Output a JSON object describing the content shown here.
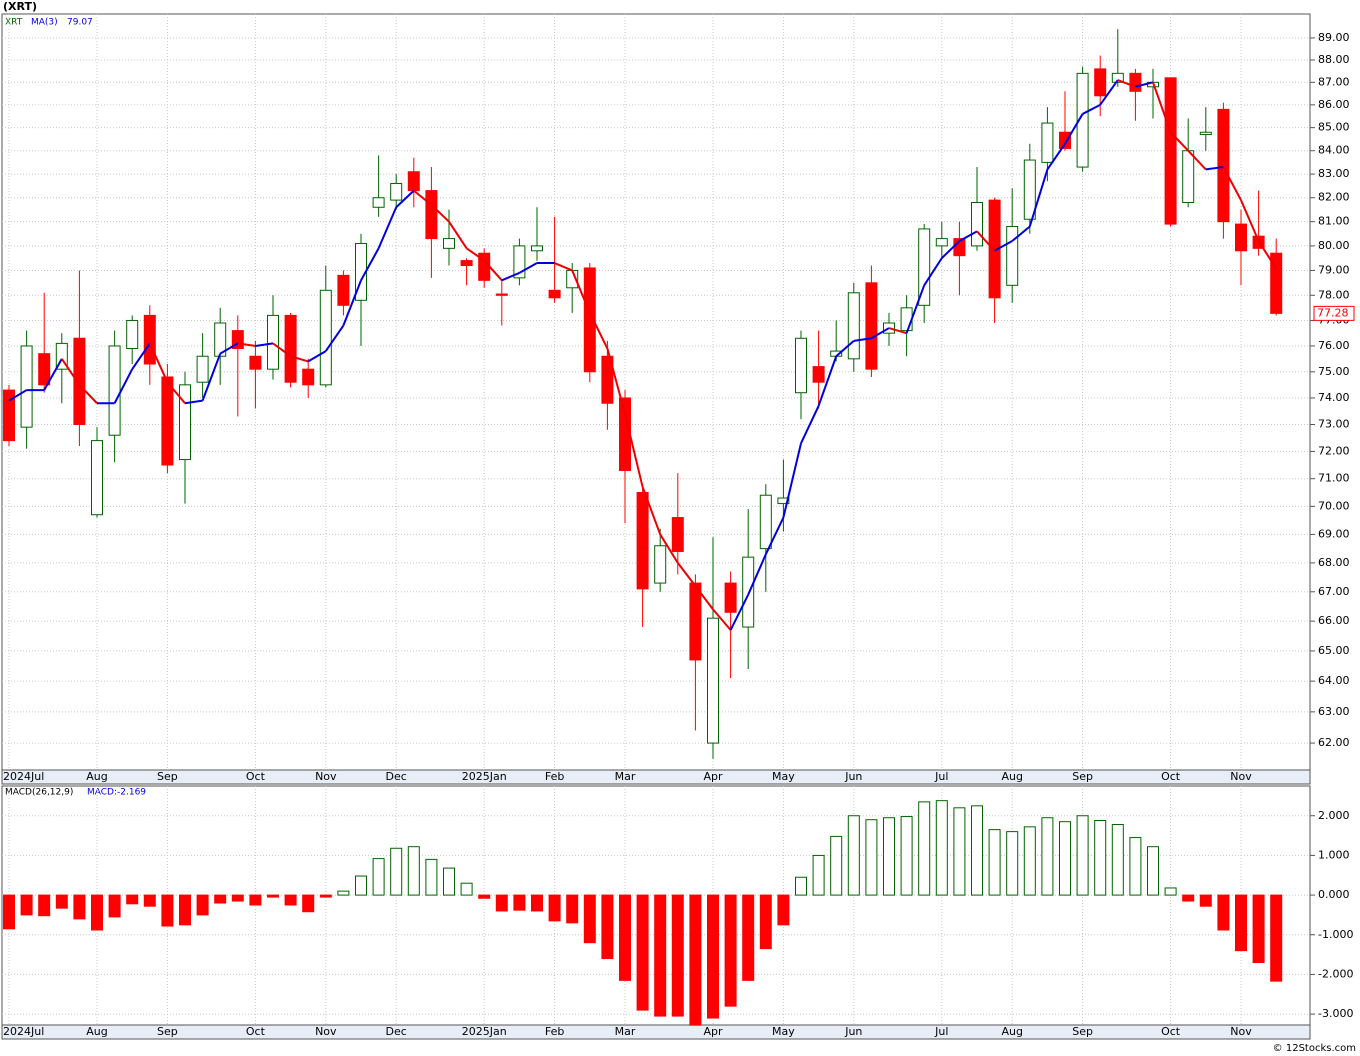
{
  "chart_data": [
    {
      "type": "candlestick",
      "title": "(XRT)",
      "symbol": "XRT",
      "ma_label": "MA(3)",
      "ma_value": 79.07,
      "log_scale": true,
      "grid": true,
      "up_color": "#006400",
      "down_color": "#ff0000",
      "ma_up_color": "#0000dd",
      "ma_down_color": "#ee0000",
      "categories": [
        "2024Jul",
        null,
        null,
        null,
        null,
        "Aug",
        null,
        null,
        null,
        "Sep",
        null,
        null,
        null,
        null,
        "Oct",
        null,
        null,
        null,
        "Nov",
        null,
        null,
        null,
        "Dec",
        null,
        null,
        null,
        null,
        "2025Jan",
        null,
        null,
        null,
        "Feb",
        null,
        null,
        null,
        "Mar",
        null,
        null,
        null,
        null,
        "Apr",
        null,
        null,
        null,
        "May",
        null,
        null,
        null,
        "Jun",
        null,
        null,
        null,
        null,
        "Jul",
        null,
        null,
        null,
        "Aug",
        null,
        null,
        null,
        "Sep",
        null,
        null,
        null,
        null,
        "Oct",
        null,
        null,
        null,
        "Nov",
        null,
        null
      ],
      "open": [
        74.3,
        72.9,
        75.7,
        75.1,
        76.3,
        69.7,
        72.6,
        75.9,
        77.2,
        74.8,
        71.7,
        74.6,
        75.6,
        76.6,
        75.6,
        75.1,
        77.2,
        75.1,
        74.5,
        78.8,
        77.8,
        81.6,
        81.9,
        83.1,
        82.3,
        79.9,
        79.4,
        79.7,
        78.05,
        78.7,
        79.8,
        78.2,
        78.3,
        79.1,
        75.6,
        74.0,
        70.5,
        67.3,
        69.6,
        67.3,
        62.0,
        67.3,
        65.8,
        68.5,
        70.1,
        74.2,
        75.2,
        75.6,
        75.5,
        78.5,
        76.5,
        76.6,
        77.6,
        80.0,
        80.3,
        80.0,
        81.9,
        78.4,
        81.1,
        83.5,
        84.8,
        83.3,
        87.6,
        87.0,
        87.4,
        86.8,
        87.2,
        81.8,
        84.7,
        85.8,
        80.9,
        80.4,
        79.7
      ],
      "high": [
        74.5,
        76.6,
        78.1,
        76.5,
        79.0,
        72.9,
        76.6,
        77.2,
        77.6,
        75.3,
        75.0,
        76.5,
        77.5,
        77.2,
        76.2,
        78.0,
        77.3,
        75.5,
        79.2,
        79.0,
        80.5,
        83.8,
        83.0,
        83.7,
        83.3,
        81.5,
        79.5,
        79.9,
        78.6,
        80.3,
        81.6,
        81.2,
        79.3,
        79.3,
        76.2,
        74.3,
        70.7,
        69.2,
        71.2,
        67.6,
        68.9,
        67.7,
        69.9,
        70.8,
        71.7,
        76.6,
        76.6,
        77.0,
        78.5,
        79.2,
        77.3,
        78.0,
        80.9,
        81.0,
        81.0,
        83.3,
        82.0,
        82.4,
        84.3,
        85.9,
        86.6,
        87.7,
        88.2,
        89.4,
        87.6,
        87.6,
        87.2,
        85.4,
        85.9,
        86.1,
        81.5,
        82.3,
        80.3
      ],
      "low": [
        72.2,
        72.1,
        74.2,
        73.8,
        72.2,
        69.6,
        71.6,
        75.3,
        74.5,
        71.2,
        70.1,
        74.0,
        74.5,
        73.3,
        73.6,
        74.7,
        74.4,
        74.0,
        74.4,
        77.2,
        76.0,
        81.2,
        81.5,
        81.6,
        78.7,
        79.2,
        78.4,
        78.3,
        76.8,
        78.4,
        79.4,
        77.7,
        77.3,
        74.6,
        72.8,
        69.4,
        65.8,
        67.0,
        67.6,
        62.4,
        61.5,
        64.1,
        64.4,
        67.0,
        69.1,
        73.2,
        73.6,
        75.4,
        75.0,
        74.8,
        76.0,
        75.6,
        76.9,
        79.5,
        78.0,
        79.8,
        76.9,
        77.7,
        80.5,
        82.7,
        84.0,
        83.1,
        85.5,
        86.8,
        85.3,
        85.4,
        80.8,
        81.6,
        84.0,
        80.3,
        78.4,
        79.6,
        77.2
      ],
      "close": [
        72.4,
        76.0,
        74.5,
        76.1,
        73.0,
        72.4,
        76.0,
        77.0,
        75.3,
        71.5,
        74.5,
        75.6,
        76.9,
        75.9,
        75.1,
        77.2,
        74.6,
        74.5,
        78.2,
        77.6,
        80.1,
        82.0,
        82.6,
        82.3,
        80.3,
        80.3,
        79.2,
        78.6,
        78.0,
        80.0,
        80.0,
        77.9,
        79.0,
        75.0,
        73.8,
        71.3,
        67.1,
        68.6,
        68.4,
        64.7,
        66.1,
        66.3,
        68.2,
        70.4,
        70.3,
        76.3,
        74.6,
        75.8,
        78.1,
        75.1,
        76.9,
        77.5,
        80.7,
        80.3,
        79.6,
        81.8,
        77.9,
        80.8,
        83.6,
        85.2,
        84.1,
        87.4,
        86.4,
        87.4,
        86.6,
        87.0,
        80.9,
        84.0,
        84.8,
        81.0,
        79.8,
        79.9,
        77.28
      ],
      "ma": [
        73.9,
        74.3,
        74.3,
        75.5,
        74.5,
        73.8,
        73.8,
        75.1,
        76.1,
        74.6,
        73.8,
        73.9,
        75.7,
        76.1,
        76.0,
        76.1,
        75.6,
        75.4,
        75.8,
        76.8,
        78.6,
        79.9,
        81.6,
        82.3,
        81.7,
        81.0,
        79.9,
        79.4,
        78.6,
        78.9,
        79.3,
        79.3,
        79.0,
        77.3,
        75.9,
        73.4,
        70.7,
        69.0,
        68.0,
        67.2,
        66.4,
        65.7,
        66.9,
        68.3,
        69.6,
        72.3,
        73.7,
        75.6,
        76.2,
        76.3,
        76.7,
        76.5,
        78.4,
        79.5,
        80.2,
        80.6,
        79.8,
        80.2,
        80.8,
        83.2,
        84.3,
        85.6,
        86.0,
        87.1,
        86.8,
        87.0,
        84.8,
        84.0,
        83.2,
        83.3,
        81.9,
        80.2,
        79.07
      ],
      "ylim": [
        61.15,
        90.1
      ],
      "yticks": [
        {
          "value": 62,
          "label": "62.00"
        },
        {
          "value": 63,
          "label": "63.00"
        },
        {
          "value": 64,
          "label": "64.00"
        },
        {
          "value": 65,
          "label": "65.00"
        },
        {
          "value": 66,
          "label": "66.00"
        },
        {
          "value": 67,
          "label": "67.00"
        },
        {
          "value": 68,
          "label": "68.00"
        },
        {
          "value": 69,
          "label": "69.00"
        },
        {
          "value": 70,
          "label": "70.00"
        },
        {
          "value": 71,
          "label": "71.00"
        },
        {
          "value": 72,
          "label": "72.00"
        },
        {
          "value": 73,
          "label": "73.00"
        },
        {
          "value": 74,
          "label": "74.00"
        },
        {
          "value": 75,
          "label": "75.00"
        },
        {
          "value": 76,
          "label": "76.00"
        },
        {
          "value": 77,
          "label": "77.00"
        },
        {
          "value": 78,
          "label": "78.00"
        },
        {
          "value": 79,
          "label": "79.00"
        },
        {
          "value": 80,
          "label": "80.00"
        },
        {
          "value": 81,
          "label": "81.00"
        },
        {
          "value": 82,
          "label": "82.00"
        },
        {
          "value": 83,
          "label": "83.00"
        },
        {
          "value": 84,
          "label": "84.00"
        },
        {
          "value": 85,
          "label": "85.00"
        },
        {
          "value": 86,
          "label": "86.00"
        },
        {
          "value": 87,
          "label": "87.00"
        },
        {
          "value": 88,
          "label": "88.00"
        },
        {
          "value": 89,
          "label": "89.00"
        }
      ]
    },
    {
      "type": "bar",
      "title": "MACD(26,12,9)",
      "legend": "MACD:-2.169",
      "grid": true,
      "up_color": "#006400",
      "down_color": "#ff0000",
      "categories": [
        "2024Jul",
        null,
        null,
        null,
        null,
        "Aug",
        null,
        null,
        null,
        "Sep",
        null,
        null,
        null,
        null,
        "Oct",
        null,
        null,
        null,
        "Nov",
        null,
        null,
        null,
        "Dec",
        null,
        null,
        null,
        null,
        "2025Jan",
        null,
        null,
        null,
        "Feb",
        null,
        null,
        null,
        "Mar",
        null,
        null,
        null,
        null,
        "Apr",
        null,
        null,
        null,
        "May",
        null,
        null,
        null,
        "Jun",
        null,
        null,
        null,
        null,
        "Jul",
        null,
        null,
        null,
        "Aug",
        null,
        null,
        null,
        "Sep",
        null,
        null,
        null,
        null,
        "Oct",
        null,
        null,
        null,
        "Nov",
        null,
        null
      ],
      "values": [
        -0.85,
        -0.5,
        -0.52,
        -0.33,
        -0.6,
        -0.88,
        -0.55,
        -0.22,
        -0.28,
        -0.78,
        -0.75,
        -0.5,
        -0.2,
        -0.15,
        -0.25,
        -0.05,
        -0.25,
        -0.42,
        -0.05,
        0.1,
        0.48,
        0.92,
        1.18,
        1.22,
        0.9,
        0.68,
        0.3,
        -0.08,
        -0.4,
        -0.38,
        -0.4,
        -0.65,
        -0.7,
        -1.2,
        -1.6,
        -2.15,
        -2.9,
        -3.05,
        -3.05,
        -3.28,
        -3.1,
        -2.8,
        -2.15,
        -1.35,
        -0.75,
        0.45,
        1.0,
        1.48,
        2.0,
        1.9,
        1.95,
        1.98,
        2.35,
        2.38,
        2.2,
        2.25,
        1.65,
        1.6,
        1.72,
        1.95,
        1.85,
        2.0,
        1.88,
        1.78,
        1.45,
        1.22,
        0.18,
        -0.15,
        -0.28,
        -0.88,
        -1.4,
        -1.7,
        -2.169
      ],
      "ylim": [
        -3.275,
        2.75
      ],
      "yticks": [
        {
          "value": -3,
          "label": "-3.000"
        },
        {
          "value": -2,
          "label": "-2.000"
        },
        {
          "value": -1,
          "label": "-1.000"
        },
        {
          "value": 0,
          "label": "0.000"
        },
        {
          "value": 1,
          "label": "1.000"
        },
        {
          "value": 2,
          "label": "2.000"
        }
      ]
    }
  ],
  "footer": "© 12Stocks.com"
}
